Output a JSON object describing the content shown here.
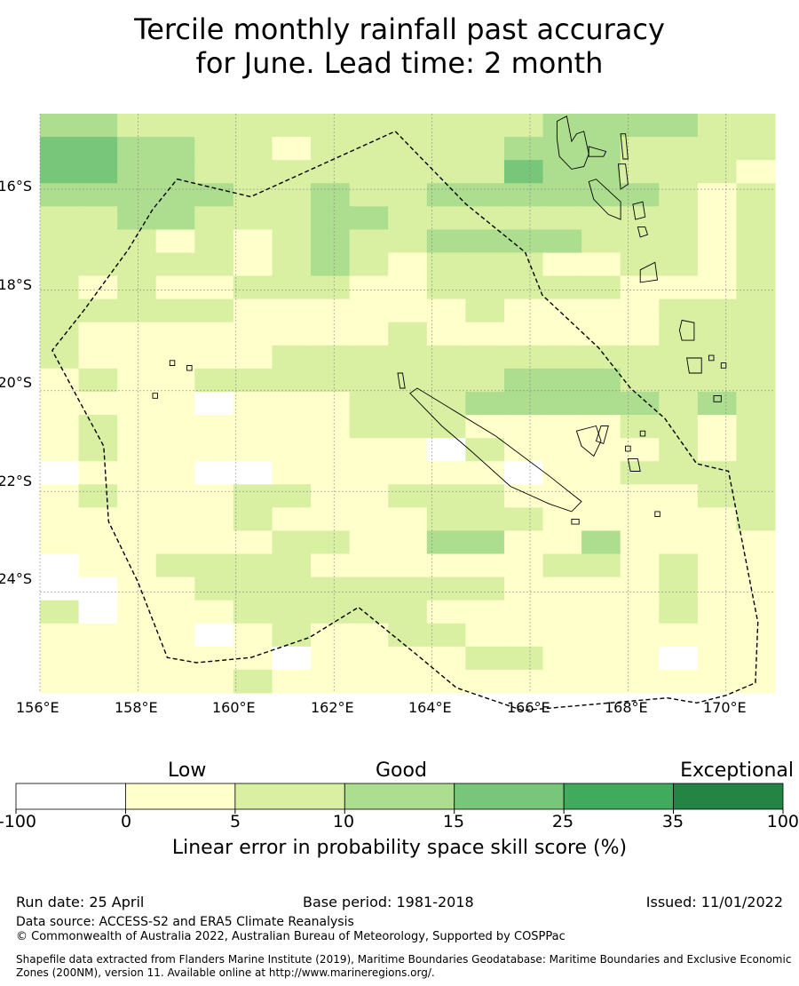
{
  "title_line1": "Tercile monthly rainfall past accuracy",
  "title_line2": "for June. Lead time: 2 month",
  "map": {
    "lon_range": [
      156,
      171
    ],
    "lat_range": [
      -26,
      -14.5
    ],
    "lon_ticks": [
      "156°E",
      "158°E",
      "160°E",
      "162°E",
      "164°E",
      "166°E",
      "168°E",
      "170°E"
    ],
    "lat_ticks": [
      "16°S",
      "18°S",
      "20°S",
      "22°S",
      "24°S"
    ],
    "colors": [
      "#ffffff",
      "#ffffcc",
      "#d9f0a3",
      "#addd8e",
      "#78c679",
      "#41ab5d",
      "#238443"
    ],
    "grid_rows": [
      "3322222222222333322",
      "4433221222223332222",
      "4433222222224332221",
      "3333322322333333212",
      "2233222332222222212",
      "2221212322333322212",
      "2222212321222112212",
      "2121122211222221112",
      "2222211111121111222",
      "2111111112111111222",
      "2111112222222222222",
      "1211222222223332222",
      "1111011122233333232",
      "1211111122211112212",
      "1211111111021111212",
      "0111001111110112222",
      "1211122112221111122",
      "1111121111222111112",
      "1111112211331131111",
      "0112222111111221211",
      "0011222222221111211",
      "2011122222111111211",
      "1111012112211111111",
      "1111110111122111011",
      "1111121111111111111"
    ],
    "boundary": [
      [
        158.8,
        -15.8
      ],
      [
        160.3,
        -16.15
      ],
      [
        163.25,
        -14.85
      ],
      [
        164.7,
        -16.3
      ],
      [
        165.9,
        -17.25
      ],
      [
        166.25,
        -18.1
      ],
      [
        167.4,
        -19.15
      ],
      [
        168.05,
        -19.95
      ],
      [
        168.75,
        -20.55
      ],
      [
        169.4,
        -21.45
      ],
      [
        170.05,
        -21.6
      ],
      [
        170.65,
        -24.6
      ],
      [
        170.6,
        -25.8
      ],
      [
        170.0,
        -26.05
      ],
      [
        169.4,
        -26.2
      ],
      [
        168.8,
        -26.1
      ],
      [
        165.85,
        -26.35
      ],
      [
        164.5,
        -25.9
      ],
      [
        163.7,
        -25.25
      ],
      [
        162.5,
        -24.3
      ],
      [
        161.5,
        -24.9
      ],
      [
        160.3,
        -25.3
      ],
      [
        159.2,
        -25.4
      ],
      [
        158.6,
        -25.3
      ],
      [
        158.0,
        -23.8
      ],
      [
        157.4,
        -22.6
      ],
      [
        157.3,
        -21.1
      ],
      [
        156.8,
        -20.2
      ],
      [
        156.25,
        -19.2
      ],
      [
        156.9,
        -18.4
      ],
      [
        157.8,
        -17.2
      ],
      [
        158.3,
        -16.4
      ]
    ],
    "islands": [
      [
        [
          166.55,
          -14.65
        ],
        [
          166.75,
          -14.55
        ],
        [
          166.85,
          -15.05
        ],
        [
          166.95,
          -14.9
        ],
        [
          167.1,
          -14.85
        ],
        [
          167.2,
          -15.3
        ],
        [
          167.1,
          -15.55
        ],
        [
          166.85,
          -15.6
        ],
        [
          166.6,
          -15.35
        ],
        [
          166.55,
          -15.0
        ]
      ],
      [
        [
          167.2,
          -15.15
        ],
        [
          167.55,
          -15.25
        ],
        [
          167.5,
          -15.35
        ],
        [
          167.2,
          -15.35
        ]
      ],
      [
        [
          167.85,
          -14.9
        ],
        [
          167.95,
          -14.9
        ],
        [
          168.0,
          -15.4
        ],
        [
          167.9,
          -15.4
        ]
      ],
      [
        [
          167.8,
          -15.5
        ],
        [
          167.95,
          -15.5
        ],
        [
          168.0,
          -15.9
        ],
        [
          167.85,
          -16.0
        ]
      ],
      [
        [
          167.2,
          -15.85
        ],
        [
          167.35,
          -15.8
        ],
        [
          167.85,
          -16.25
        ],
        [
          167.85,
          -16.6
        ],
        [
          167.6,
          -16.5
        ],
        [
          167.3,
          -16.2
        ]
      ],
      [
        [
          168.1,
          -16.3
        ],
        [
          168.3,
          -16.25
        ],
        [
          168.35,
          -16.55
        ],
        [
          168.15,
          -16.6
        ]
      ],
      [
        [
          168.2,
          -16.75
        ],
        [
          168.35,
          -16.75
        ],
        [
          168.4,
          -16.9
        ],
        [
          168.25,
          -16.95
        ]
      ],
      [
        [
          168.25,
          -17.6
        ],
        [
          168.55,
          -17.45
        ],
        [
          168.6,
          -17.8
        ],
        [
          168.25,
          -17.85
        ]
      ],
      [
        [
          169.1,
          -18.6
        ],
        [
          169.35,
          -18.65
        ],
        [
          169.35,
          -19.0
        ],
        [
          169.1,
          -19.0
        ],
        [
          169.05,
          -18.8
        ]
      ],
      [
        [
          169.2,
          -19.35
        ],
        [
          169.5,
          -19.35
        ],
        [
          169.5,
          -19.65
        ],
        [
          169.25,
          -19.65
        ]
      ],
      [
        [
          169.65,
          -19.3
        ],
        [
          169.75,
          -19.3
        ],
        [
          169.75,
          -19.4
        ],
        [
          169.65,
          -19.4
        ]
      ],
      [
        [
          169.9,
          -19.45
        ],
        [
          170.0,
          -19.45
        ],
        [
          170.0,
          -19.55
        ],
        [
          169.9,
          -19.55
        ]
      ],
      [
        [
          169.75,
          -20.1
        ],
        [
          169.9,
          -20.1
        ],
        [
          169.9,
          -20.22
        ],
        [
          169.75,
          -20.22
        ]
      ],
      [
        [
          163.55,
          -20.05
        ],
        [
          163.7,
          -19.95
        ],
        [
          165.3,
          -20.9
        ],
        [
          166.4,
          -21.7
        ],
        [
          167.05,
          -22.2
        ],
        [
          166.85,
          -22.4
        ],
        [
          166.4,
          -22.25
        ],
        [
          165.6,
          -21.9
        ],
        [
          164.8,
          -21.2
        ],
        [
          164.2,
          -20.7
        ],
        [
          163.85,
          -20.35
        ]
      ],
      [
        [
          163.3,
          -19.65
        ],
        [
          163.4,
          -19.65
        ],
        [
          163.45,
          -19.95
        ],
        [
          163.35,
          -19.95
        ]
      ],
      [
        [
          166.85,
          -22.55
        ],
        [
          167.0,
          -22.55
        ],
        [
          167.0,
          -22.65
        ],
        [
          166.85,
          -22.65
        ]
      ],
      [
        [
          167.45,
          -20.7
        ],
        [
          167.6,
          -20.7
        ],
        [
          167.5,
          -21.05
        ],
        [
          167.35,
          -21.0
        ]
      ],
      [
        [
          167.95,
          -21.1
        ],
        [
          168.05,
          -21.1
        ],
        [
          168.05,
          -21.2
        ],
        [
          167.95,
          -21.2
        ]
      ],
      [
        [
          166.95,
          -20.8
        ],
        [
          167.35,
          -20.7
        ],
        [
          167.45,
          -21.0
        ],
        [
          167.3,
          -21.3
        ],
        [
          167.05,
          -21.1
        ]
      ],
      [
        [
          168.0,
          -21.35
        ],
        [
          168.2,
          -21.35
        ],
        [
          168.25,
          -21.6
        ],
        [
          168.05,
          -21.6
        ]
      ],
      [
        [
          168.25,
          -20.8
        ],
        [
          168.35,
          -20.8
        ],
        [
          168.35,
          -20.9
        ],
        [
          168.25,
          -20.9
        ]
      ],
      [
        [
          168.55,
          -22.4
        ],
        [
          168.65,
          -22.4
        ],
        [
          168.65,
          -22.5
        ],
        [
          168.55,
          -22.5
        ]
      ],
      [
        [
          158.65,
          -19.4
        ],
        [
          158.75,
          -19.4
        ],
        [
          158.75,
          -19.5
        ],
        [
          158.65,
          -19.5
        ]
      ],
      [
        [
          159.0,
          -19.5
        ],
        [
          159.1,
          -19.5
        ],
        [
          159.1,
          -19.6
        ],
        [
          159.0,
          -19.6
        ]
      ],
      [
        [
          158.3,
          -20.05
        ],
        [
          158.4,
          -20.05
        ],
        [
          158.4,
          -20.15
        ],
        [
          158.3,
          -20.15
        ]
      ]
    ]
  },
  "colorbar": {
    "category_labels": [
      "Low",
      "Good",
      "Exceptional"
    ],
    "tick_labels": [
      "-100",
      "0",
      "5",
      "10",
      "15",
      "25",
      "35",
      "100"
    ],
    "title": "Linear error in probability space skill score (%)"
  },
  "footer": {
    "run_date": "Run date: 25 April",
    "base_period": "Base period: 1981-2018",
    "issued": "Issued: 11/01/2022",
    "data_source": "Data source: ACCESS-S2 and ERA5 Climate Reanalysis",
    "copyright": "© Commonwealth of Australia 2022, Australian Bureau of Meteorology, Supported by COSPPac",
    "shapefile_line1": "Shapefile data extracted from Flanders Marine Institute (2019), Maritime Boundaries Geodatabase: Maritime Boundaries and Exclusive Economic",
    "shapefile_line2": "Zones (200NM), version 11. Available online at http://www.marineregions.org/."
  }
}
